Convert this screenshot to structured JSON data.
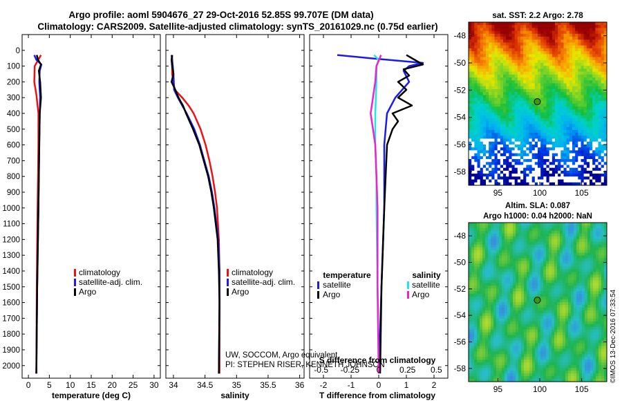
{
  "header": {
    "title_line1": "Argo profile: aoml 5904676_27 29-Oct-2016 52.85S 99.707E (DM data)",
    "title_line2": "Climatology: CARS2009. Satellite-adjusted climatology: synTS_20161029.nc (0.75d earlier)"
  },
  "colors": {
    "climatology": "#ee1111",
    "satellite_adj": "#1a1aee",
    "argo": "#000000",
    "salinity_satellite": "#22e6e6",
    "salinity_argo": "#ee22cc"
  },
  "chart_data": [
    {
      "id": "temperature-profile",
      "type": "line",
      "xlabel": "temperature (deg C)",
      "xlim": [
        -1.5,
        31.5
      ],
      "xticks": [
        0,
        5,
        10,
        15,
        20,
        25,
        30
      ],
      "depth_ticks": [
        0,
        100,
        200,
        300,
        400,
        500,
        600,
        700,
        800,
        900,
        1000,
        1100,
        1200,
        1300,
        1400,
        1500,
        1600,
        1700,
        1800,
        1900,
        2000
      ],
      "ylim": [
        -100,
        2080
      ],
      "legend": [
        "climatology",
        "satellite-adj. clim.",
        "Argo"
      ],
      "series": [
        {
          "name": "climatology",
          "color_key": "climatology",
          "depth": [
            30,
            100,
            200,
            280,
            400,
            600,
            1000,
            1500,
            2050
          ],
          "values": [
            3.0,
            1.5,
            1.4,
            1.9,
            2.4,
            2.4,
            2.2,
            2.0,
            1.9
          ]
        },
        {
          "name": "satellite-adj. clim.",
          "color_key": "satellite_adj",
          "depth": [
            30,
            60,
            90,
            130,
            200,
            300,
            400,
            600,
            1000,
            1500,
            2050
          ],
          "values": [
            1.4,
            1.9,
            3.1,
            2.7,
            2.6,
            2.8,
            2.7,
            2.6,
            2.4,
            2.1,
            1.9
          ]
        },
        {
          "name": "Argo",
          "color_key": "argo",
          "depth": [
            30,
            60,
            90,
            130,
            200,
            250,
            300,
            400,
            600,
            1000,
            1500,
            2050
          ],
          "values": [
            2.0,
            2.3,
            3.0,
            2.5,
            2.8,
            2.9,
            3.0,
            2.7,
            2.6,
            2.4,
            2.1,
            1.9
          ]
        }
      ]
    },
    {
      "id": "salinity-profile",
      "type": "line",
      "xlabel": "salinity",
      "xlim": [
        33.88,
        36.07
      ],
      "xticks": [
        34,
        34.5,
        35,
        35.5,
        36
      ],
      "ylim": [
        -100,
        2080
      ],
      "legend": [
        "climatology",
        "satellite-adj. clim.",
        "Argo"
      ],
      "series": [
        {
          "name": "climatology",
          "color_key": "climatology",
          "depth": [
            30,
            150,
            250,
            300,
            350,
            400,
            500,
            600,
            700,
            800,
            900,
            1000,
            1200,
            1400,
            1600,
            2050
          ],
          "values": [
            33.98,
            33.98,
            34.02,
            34.14,
            34.24,
            34.32,
            34.43,
            34.51,
            34.57,
            34.62,
            34.66,
            34.69,
            34.72,
            34.73,
            34.73,
            34.73
          ]
        },
        {
          "name": "satellite-adj. clim.",
          "color_key": "satellite_adj",
          "depth": [
            30,
            60,
            100,
            150,
            250,
            300,
            350,
            400,
            500,
            600,
            700,
            800,
            900,
            1000,
            1200,
            1400,
            1600,
            2050
          ],
          "values": [
            33.97,
            33.98,
            33.99,
            34.0,
            34.01,
            34.07,
            34.14,
            34.21,
            34.33,
            34.42,
            34.49,
            34.56,
            34.61,
            34.65,
            34.71,
            34.73,
            34.73,
            34.72
          ]
        },
        {
          "name": "Argo",
          "color_key": "argo",
          "depth": [
            30,
            60,
            100,
            150,
            200,
            250,
            300,
            350,
            400,
            500,
            600,
            700,
            800,
            900,
            1000,
            1200,
            1400,
            1600,
            2050
          ],
          "values": [
            33.98,
            33.97,
            33.98,
            34.0,
            33.97,
            34.03,
            34.08,
            34.15,
            34.2,
            34.31,
            34.41,
            34.48,
            34.55,
            34.6,
            34.64,
            34.7,
            34.72,
            34.73,
            34.72
          ]
        }
      ],
      "footer_note_1": "UW, SOCCOM, Argo equivalent",
      "footer_note_2": "PI: STEPHEN RISER, KENNETH JOHNSON"
    },
    {
      "id": "difference-profile",
      "type": "line",
      "xlabel": "T difference from climatology",
      "top_xlabel": "S difference from climatology",
      "xlim": [
        -2.5,
        2.5
      ],
      "xticks": [
        -2,
        -1,
        0,
        1,
        2
      ],
      "top_ticks": [
        -0.5,
        -0.25,
        0,
        0.25,
        0.5
      ],
      "top_tick_labels": [
        "-0.5",
        "-0.25",
        "0",
        "0.25",
        "0.5"
      ],
      "ylim": [
        -100,
        2080
      ],
      "legend_left_title": "temperature",
      "legend_right_title": "salinity",
      "legend_left": [
        "satellite",
        "Argo"
      ],
      "legend_right": [
        "satellite",
        "Argo"
      ],
      "series": [
        {
          "name": "T satellite",
          "color_key": "satellite_adj",
          "axis": "T",
          "depth": [
            30,
            50,
            80,
            100,
            130,
            200,
            300,
            400,
            600,
            1000,
            1500,
            2050
          ],
          "values": [
            -1.5,
            -0.3,
            1.6,
            1.1,
            0.9,
            1.1,
            0.6,
            0.3,
            0.2,
            0.2,
            0.1,
            0.0
          ]
        },
        {
          "name": "T Argo",
          "color_key": "argo",
          "axis": "T",
          "depth": [
            30,
            60,
            90,
            120,
            160,
            200,
            250,
            300,
            350,
            400,
            450,
            500,
            600,
            800,
            1000,
            1500,
            2050
          ],
          "values": [
            1.0,
            1.3,
            1.6,
            0.9,
            1.1,
            0.7,
            1.0,
            0.7,
            1.2,
            0.5,
            0.7,
            0.5,
            0.3,
            0.25,
            0.2,
            0.1,
            0.05
          ]
        },
        {
          "name": "S satellite",
          "color_key": "salinity_satellite",
          "axis": "S",
          "depth": [
            30,
            60,
            100,
            200,
            400,
            600,
            800,
            1000,
            1500,
            2050
          ],
          "values": [
            -0.04,
            0.0,
            -0.02,
            -0.02,
            -0.03,
            -0.03,
            -0.02,
            -0.02,
            -0.01,
            0.0
          ]
        },
        {
          "name": "S Argo",
          "color_key": "salinity_argo",
          "axis": "S",
          "depth": [
            30,
            100,
            200,
            250,
            300,
            400,
            450,
            500,
            600,
            800,
            1000,
            1500,
            2050
          ],
          "values": [
            0.02,
            -0.02,
            -0.03,
            -0.04,
            -0.05,
            -0.07,
            -0.06,
            -0.05,
            -0.03,
            -0.02,
            -0.01,
            -0.01,
            0.0
          ]
        }
      ]
    },
    {
      "id": "sst-map",
      "type": "heatmap",
      "title": "sat. SST: 2.2 Argo: 2.78",
      "lon_range": [
        91.5,
        108
      ],
      "lat_range": [
        -59,
        -47
      ],
      "xticks": [
        95,
        100,
        105
      ],
      "yticks": [
        -48,
        -50,
        -52,
        -54,
        -56,
        -58
      ],
      "float_position": {
        "lon": 99.707,
        "lat": -52.85
      }
    },
    {
      "id": "sla-map",
      "type": "heatmap",
      "title_line1": "Altim. SLA: 0.087",
      "title_line2": "Argo h1000: 0.04 h2000: NaN",
      "lon_range": [
        91.5,
        108
      ],
      "lat_range": [
        -59,
        -47
      ],
      "xticks": [
        95,
        100,
        105
      ],
      "yticks": [
        -48,
        -50,
        -52,
        -54,
        -56,
        -58
      ],
      "float_position": {
        "lon": 99.707,
        "lat": -52.85
      }
    }
  ],
  "watermark": "©IMOS 13-Dec-2016 07:33:54"
}
